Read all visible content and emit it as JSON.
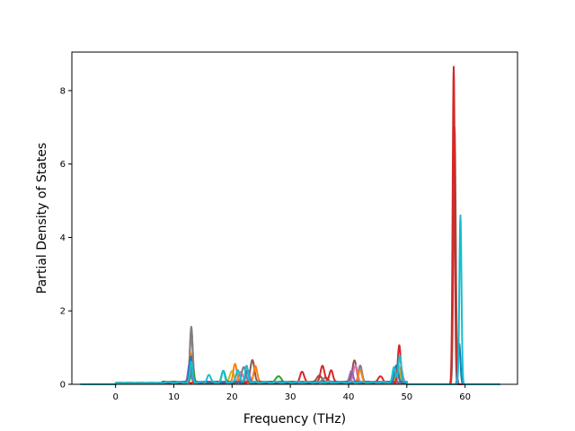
{
  "chart_data": {
    "type": "line",
    "xlabel": "Frequency (THz)",
    "ylabel": "Partial Density of States",
    "xlim": [
      -7.5,
      69
    ],
    "ylim": [
      0,
      9.05
    ],
    "xticks": [
      0,
      10,
      20,
      30,
      40,
      50,
      60
    ],
    "yticks": [
      0,
      2,
      4,
      6,
      8
    ],
    "grid": false,
    "legend": "none",
    "series": [
      {
        "color": "#8c564b",
        "peaks": [
          [
            13,
            1.45,
            0.25
          ],
          [
            23.5,
            0.6,
            0.35
          ],
          [
            41,
            0.6,
            0.35
          ],
          [
            35,
            0.2,
            0.4
          ],
          [
            58.2,
            7.0,
            0.2
          ]
        ]
      },
      {
        "color": "#e377c2",
        "peaks": [
          [
            13,
            1.3,
            0.25
          ],
          [
            21.5,
            0.3,
            0.35
          ],
          [
            41.2,
            0.45,
            0.35
          ],
          [
            49,
            0.4,
            0.3
          ]
        ]
      },
      {
        "color": "#7f7f7f",
        "peaks": [
          [
            13,
            1.5,
            0.22
          ],
          [
            22,
            0.4,
            0.35
          ],
          [
            42,
            0.45,
            0.3
          ],
          [
            36,
            0.15,
            0.4
          ]
        ]
      },
      {
        "color": "#bcbd22",
        "peaks": [
          [
            12.8,
            0.6,
            0.25
          ],
          [
            20,
            0.3,
            0.35
          ],
          [
            48.5,
            0.5,
            0.3
          ]
        ]
      },
      {
        "color": "#ff7f0e",
        "peaks": [
          [
            12.9,
            0.8,
            0.25
          ],
          [
            20.5,
            0.5,
            0.3
          ],
          [
            24,
            0.45,
            0.3
          ],
          [
            42,
            0.35,
            0.3
          ]
        ]
      },
      {
        "color": "#2ca02c",
        "peaks": [
          [
            13.2,
            0.4,
            0.25
          ],
          [
            18.5,
            0.3,
            0.3
          ],
          [
            28,
            0.15,
            0.5
          ]
        ]
      },
      {
        "color": "#9467bd",
        "peaks": [
          [
            12.7,
            0.5,
            0.25
          ],
          [
            22.7,
            0.35,
            0.3
          ],
          [
            40.5,
            0.3,
            0.3
          ]
        ]
      },
      {
        "color": "#d62728",
        "peaks": [
          [
            58.05,
            8.65,
            0.18
          ],
          [
            35.5,
            0.45,
            0.35
          ],
          [
            32,
            0.28,
            0.35
          ],
          [
            37,
            0.35,
            0.3
          ],
          [
            48.7,
            1.0,
            0.25
          ],
          [
            45.5,
            0.15,
            0.4
          ]
        ]
      },
      {
        "color": "#1f77b4",
        "peaks": [
          [
            12.9,
            0.7,
            0.25
          ],
          [
            22.5,
            0.3,
            0.3
          ],
          [
            48.2,
            0.45,
            0.3
          ],
          [
            59,
            1.1,
            0.2
          ]
        ]
      },
      {
        "color": "#17becf",
        "peaks": [
          [
            13,
            0.55,
            0.22
          ],
          [
            16,
            0.2,
            0.3
          ],
          [
            18.5,
            0.3,
            0.25
          ],
          [
            21,
            0.35,
            0.3
          ],
          [
            22.5,
            0.45,
            0.25
          ],
          [
            47.8,
            0.4,
            0.25
          ],
          [
            48.8,
            0.75,
            0.25
          ],
          [
            59.2,
            4.6,
            0.18
          ]
        ]
      }
    ]
  }
}
